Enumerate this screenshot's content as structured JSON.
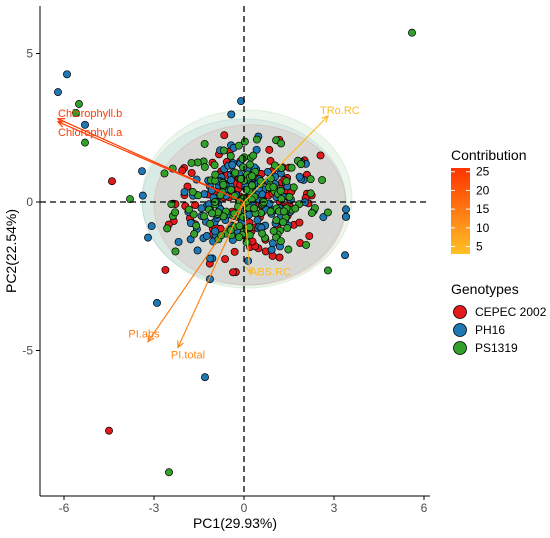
{
  "chart_data": {
    "type": "scatter",
    "subtype": "pca-biplot",
    "xlabel": "PC1(29.93%)",
    "ylabel": "PC2(22.54%)",
    "xlim": [
      -6.8,
      6.2
    ],
    "ylim": [
      -9.9,
      6.6
    ],
    "x_ticks": [
      -6,
      -3,
      0,
      3,
      6
    ],
    "y_ticks": [
      5,
      0,
      -5
    ],
    "reference_lines": {
      "x": 0,
      "y": 0,
      "style": "dashed"
    },
    "grid": false,
    "loadings": [
      {
        "name": "Chlorophyll.b",
        "x": -6.2,
        "y": 2.8,
        "contribution": 25
      },
      {
        "name": "Chlorophyll.a",
        "x": -6.2,
        "y": 2.7,
        "contribution": 24
      },
      {
        "name": "TRo.RC",
        "x": 2.8,
        "y": 2.9,
        "contribution": 4
      },
      {
        "name": "PI.abs",
        "x": -3.2,
        "y": -4.7,
        "contribution": 14
      },
      {
        "name": "PI.total",
        "x": -2.2,
        "y": -4.9,
        "contribution": 12
      },
      {
        "name": "ABS.RC",
        "x": 0.2,
        "y": -2.4,
        "contribution": 4
      }
    ],
    "ellipses": [
      {
        "group": "CEPEC 2002",
        "cx": 0.2,
        "cy": -0.1,
        "rx": 3.2,
        "ry": 2.7,
        "color": "#E31A1C"
      },
      {
        "group": "PH16",
        "cx": 0.0,
        "cy": 0.0,
        "rx": 3.4,
        "ry": 2.8,
        "color": "#1F78B4"
      },
      {
        "group": "PS1319",
        "cx": 0.1,
        "cy": 0.1,
        "rx": 3.5,
        "ry": 3.0,
        "color": "#33A02C"
      }
    ],
    "outliers": [
      {
        "group": "PS1319",
        "x": 5.6,
        "y": 5.7
      },
      {
        "group": "PH16",
        "x": -6.2,
        "y": 3.7
      },
      {
        "group": "PH16",
        "x": -5.9,
        "y": 4.3
      },
      {
        "group": "PS1319",
        "x": -5.5,
        "y": 3.3
      },
      {
        "group": "PH16",
        "x": -5.3,
        "y": 2.6
      },
      {
        "group": "PS1319",
        "x": -5.6,
        "y": 3.0
      },
      {
        "group": "PS1319",
        "x": -5.3,
        "y": 2.0
      },
      {
        "group": "PH16",
        "x": -0.1,
        "y": 3.4
      },
      {
        "group": "CEPEC 2002",
        "x": -4.4,
        "y": 0.7
      },
      {
        "group": "PS1319",
        "x": -3.8,
        "y": 0.1
      },
      {
        "group": "PH16",
        "x": -3.2,
        "y": -1.2
      },
      {
        "group": "PH16",
        "x": -2.9,
        "y": -3.4
      },
      {
        "group": "PH16",
        "x": -1.3,
        "y": -5.9
      },
      {
        "group": "CEPEC 2002",
        "x": -4.5,
        "y": -7.7
      },
      {
        "group": "PS1319",
        "x": -2.5,
        "y": -9.1
      },
      {
        "group": "PH16",
        "x": 3.4,
        "y": -0.5
      },
      {
        "group": "CEPEC 2002",
        "x": 3.4,
        "y": -0.5
      }
    ],
    "cluster": {
      "center": [
        0.1,
        0.0
      ],
      "sd": [
        1.2,
        0.9
      ],
      "n_per_group": 150
    }
  },
  "legend_contribution": {
    "title": "Contribution",
    "ticks": [
      "25",
      "20",
      "15",
      "10",
      "5"
    ],
    "gradient_top": "#FF3300",
    "gradient_bottom": "#FFC125"
  },
  "legend_genotypes": {
    "title": "Genotypes",
    "items": [
      {
        "label": "CEPEC 2002",
        "color": "#E31A1C"
      },
      {
        "label": "PH16",
        "color": "#1F78B4"
      },
      {
        "label": "PS1319",
        "color": "#33A02C"
      }
    ]
  }
}
